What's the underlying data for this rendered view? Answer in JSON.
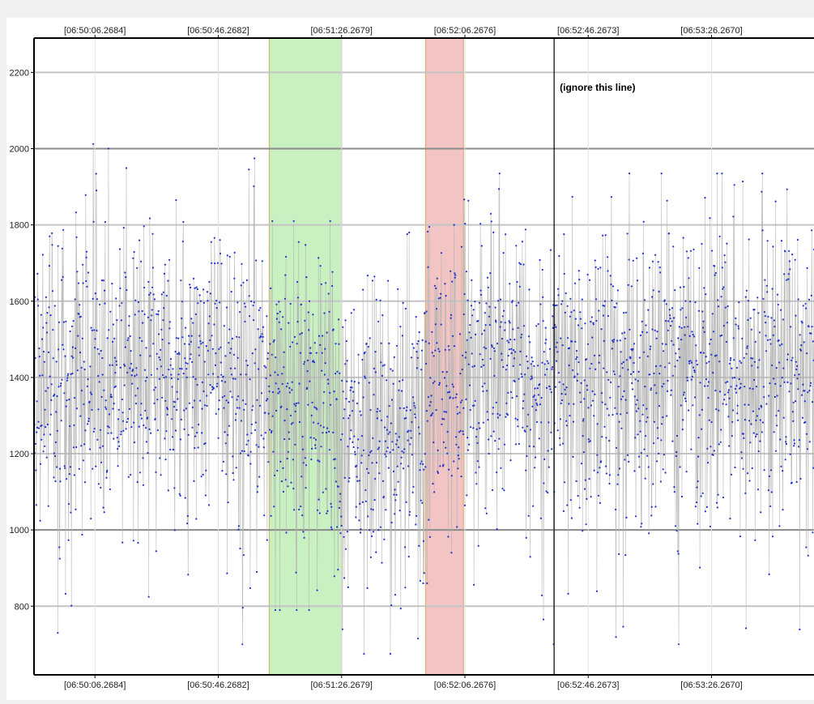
{
  "chart_data": {
    "type": "line",
    "title": "",
    "xlabel": "",
    "ylabel": "",
    "x_tick_labels": [
      "[06:50:06.2684]",
      "[06:50:46.2682]",
      "[06:51:26.2679]",
      "[06:52:06.2676]",
      "[06:52:46.2673]",
      "[06:53:26.2670]"
    ],
    "x_tick_seconds": [
      6.2684,
      46.2682,
      86.2679,
      126.2676,
      166.2673,
      206.267
    ],
    "xlim_seconds": [
      -13.5,
      239.5
    ],
    "ylim": [
      620,
      2290
    ],
    "y_ticks": [
      800,
      1000,
      1200,
      1400,
      1600,
      1800,
      2000,
      2200
    ],
    "grid": true,
    "marker_color": "#1f2fd0",
    "line_color": "#b4b4b4",
    "series": [
      {
        "name": "",
        "sample_count": 2400,
        "segments": [
          {
            "x_range": [
              -13.5,
              60
            ],
            "mean": 1400,
            "min": 700,
            "max": 2060
          },
          {
            "x_range": [
              60,
              86.5
            ],
            "mean": 1350,
            "min": 790,
            "max": 1810
          },
          {
            "x_range": [
              86.5,
              112
            ],
            "mean": 1240,
            "min": 675,
            "max": 1780
          },
          {
            "x_range": [
              112,
              125
            ],
            "mean": 1330,
            "min": 860,
            "max": 1800
          },
          {
            "x_range": [
              125,
              239.5
            ],
            "mean": 1400,
            "min": 700,
            "max": 1935
          }
        ]
      }
    ],
    "highlight_regions": [
      {
        "x_range": [
          62.8,
          86.3
        ],
        "color": "#c8f0c0",
        "border": "#d8b070"
      },
      {
        "x_range": [
          113.5,
          125.8
        ],
        "color": "#f2c4c4",
        "border": "#e0b070"
      }
    ],
    "vertical_line": {
      "x": 155.2,
      "color": "#000000",
      "label": "(ignore this line)"
    }
  }
}
